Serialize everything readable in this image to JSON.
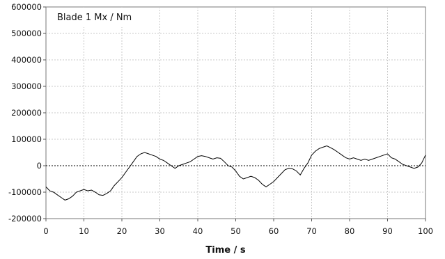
{
  "chart_data": {
    "type": "line",
    "title": "Blade 1 Mx / Nm",
    "xlabel": "Time / s",
    "ylabel": "",
    "xlim": [
      0,
      100
    ],
    "ylim": [
      -200000,
      600000
    ],
    "x_ticks": [
      0,
      10,
      20,
      30,
      40,
      50,
      60,
      70,
      80,
      90,
      100
    ],
    "y_ticks": [
      -200000,
      -100000,
      0,
      100000,
      200000,
      300000,
      400000,
      500000,
      600000
    ],
    "x_tick_labels": [
      "0",
      "10",
      "20",
      "30",
      "40",
      "50",
      "60",
      "70",
      "80",
      "90",
      "100"
    ],
    "y_tick_labels": [
      "-200000",
      "-100000",
      "0",
      "100000",
      "200000",
      "300000",
      "400000",
      "500000",
      "600000"
    ],
    "grid": true,
    "zero_line": true,
    "series": [
      {
        "color": "#000000",
        "x": [
          0,
          1,
          2,
          3,
          4,
          5,
          6,
          7,
          8,
          9,
          10,
          11,
          12,
          13,
          14,
          15,
          16,
          17,
          18,
          19,
          20,
          21,
          22,
          23,
          24,
          25,
          26,
          27,
          28,
          29,
          30,
          31,
          32,
          33,
          34,
          35,
          36,
          37,
          38,
          39,
          40,
          41,
          42,
          43,
          44,
          45,
          46,
          47,
          48,
          49,
          50,
          51,
          52,
          53,
          54,
          55,
          56,
          57,
          58,
          59,
          60,
          61,
          62,
          63,
          64,
          65,
          66,
          67,
          68,
          69,
          70,
          71,
          72,
          73,
          74,
          75,
          76,
          77,
          78,
          79,
          80,
          81,
          82,
          83,
          84,
          85,
          86,
          87,
          88,
          89,
          90,
          91,
          92,
          93,
          94,
          95,
          96,
          97,
          98,
          99,
          100
        ],
        "values": [
          -80000,
          -95000,
          -100000,
          -110000,
          -120000,
          -130000,
          -125000,
          -115000,
          -100000,
          -95000,
          -90000,
          -95000,
          -92000,
          -100000,
          -110000,
          -112000,
          -105000,
          -95000,
          -75000,
          -60000,
          -45000,
          -25000,
          -5000,
          15000,
          35000,
          45000,
          50000,
          45000,
          40000,
          35000,
          25000,
          20000,
          10000,
          0,
          -10000,
          0,
          5000,
          10000,
          15000,
          25000,
          35000,
          38000,
          35000,
          30000,
          25000,
          30000,
          28000,
          15000,
          0,
          -5000,
          -20000,
          -40000,
          -50000,
          -45000,
          -40000,
          -45000,
          -55000,
          -70000,
          -80000,
          -70000,
          -60000,
          -45000,
          -30000,
          -15000,
          -10000,
          -12000,
          -20000,
          -35000,
          -10000,
          10000,
          40000,
          55000,
          65000,
          70000,
          75000,
          68000,
          60000,
          50000,
          40000,
          30000,
          25000,
          30000,
          25000,
          20000,
          25000,
          20000,
          25000,
          30000,
          35000,
          40000,
          45000,
          30000,
          25000,
          15000,
          5000,
          0,
          -5000,
          -10000,
          -5000,
          10000,
          40000
        ]
      }
    ]
  }
}
